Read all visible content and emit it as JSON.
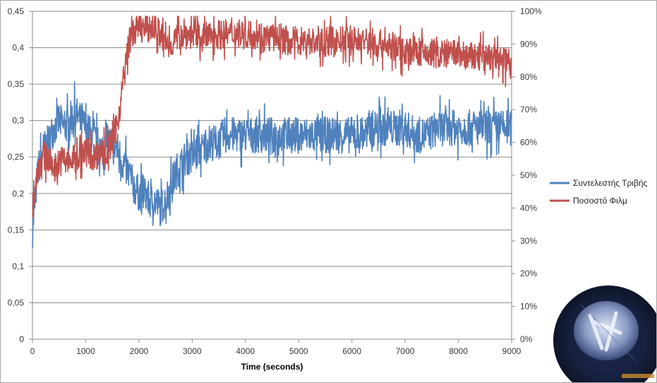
{
  "chart_data": {
    "type": "line",
    "xlabel": "Time (seconds)",
    "ylabel_left": "",
    "ylabel_right": "",
    "x_ticks": [
      0,
      1000,
      2000,
      3000,
      4000,
      5000,
      6000,
      7000,
      8000,
      9000
    ],
    "x_tick_labels": [
      "0",
      "1000",
      "2000",
      "3000",
      "4000",
      "5000",
      "6000",
      "7000",
      "8000",
      "9000"
    ],
    "xlim": [
      0,
      9000
    ],
    "ylim_left": [
      0,
      0.45
    ],
    "y_left_ticks": [
      0,
      0.05,
      0.1,
      0.15,
      0.2,
      0.25,
      0.3,
      0.35,
      0.4,
      0.45
    ],
    "y_left_tick_labels": [
      "0",
      "0,05",
      "0,1",
      "0,15",
      "0,2",
      "0,25",
      "0,3",
      "0,35",
      "0,4",
      "0,45"
    ],
    "ylim_right": [
      0,
      1
    ],
    "y_right_ticks": [
      0,
      0.1,
      0.2,
      0.3,
      0.4,
      0.5,
      0.6,
      0.7,
      0.8,
      0.9,
      1.0
    ],
    "y_right_tick_labels": [
      "0%",
      "10%",
      "20%",
      "30%",
      "40%",
      "50%",
      "60%",
      "70%",
      "80%",
      "90%",
      "100%"
    ],
    "grid": "horizontal",
    "legend_position": "right",
    "series": [
      {
        "name": "Συντελεστής Τριβής",
        "axis": "left",
        "color": "#4f81bd",
        "x": [
          0,
          100,
          200,
          300,
          400,
          500,
          600,
          700,
          800,
          900,
          1000,
          1100,
          1200,
          1300,
          1400,
          1500,
          1600,
          1700,
          1800,
          1900,
          2000,
          2100,
          2200,
          2300,
          2400,
          2500,
          2600,
          2700,
          2800,
          2900,
          3000,
          3100,
          3200,
          3300,
          3400,
          3500,
          3600,
          3700,
          3800,
          3900,
          4000,
          4200,
          4400,
          4600,
          4800,
          5000,
          5200,
          5400,
          5600,
          5800,
          6000,
          6200,
          6400,
          6600,
          6800,
          7000,
          7200,
          7400,
          7600,
          7800,
          8000,
          8200,
          8400,
          8600,
          8800,
          9000
        ],
        "values": [
          0.15,
          0.23,
          0.26,
          0.27,
          0.29,
          0.3,
          0.29,
          0.3,
          0.31,
          0.3,
          0.29,
          0.28,
          0.27,
          0.26,
          0.27,
          0.27,
          0.26,
          0.24,
          0.23,
          0.21,
          0.2,
          0.2,
          0.19,
          0.19,
          0.18,
          0.19,
          0.21,
          0.23,
          0.24,
          0.25,
          0.25,
          0.26,
          0.26,
          0.27,
          0.27,
          0.27,
          0.28,
          0.28,
          0.28,
          0.28,
          0.28,
          0.28,
          0.28,
          0.28,
          0.28,
          0.28,
          0.28,
          0.28,
          0.28,
          0.28,
          0.28,
          0.28,
          0.29,
          0.29,
          0.29,
          0.29,
          0.28,
          0.28,
          0.29,
          0.29,
          0.29,
          0.29,
          0.29,
          0.29,
          0.29,
          0.29
        ],
        "noise_amplitude": 0.025
      },
      {
        "name": "Ποσοστό Φιλμ",
        "axis": "right",
        "color": "#c0504d",
        "x": [
          0,
          100,
          200,
          300,
          400,
          500,
          600,
          700,
          800,
          900,
          1000,
          1100,
          1200,
          1300,
          1400,
          1500,
          1600,
          1700,
          1800,
          1900,
          2000,
          2100,
          2200,
          2300,
          2400,
          2500,
          2600,
          2700,
          2800,
          2900,
          3000,
          3200,
          3400,
          3600,
          3800,
          4000,
          4200,
          4400,
          4600,
          4800,
          5000,
          5200,
          5400,
          5600,
          5800,
          6000,
          6200,
          6400,
          6600,
          6800,
          7000,
          7200,
          7400,
          7600,
          7800,
          8000,
          8200,
          8400,
          8600,
          8800,
          9000
        ],
        "values": [
          0.4,
          0.52,
          0.56,
          0.55,
          0.52,
          0.54,
          0.55,
          0.54,
          0.55,
          0.56,
          0.57,
          0.56,
          0.56,
          0.58,
          0.57,
          0.6,
          0.66,
          0.78,
          0.9,
          0.94,
          0.95,
          0.95,
          0.95,
          0.95,
          0.93,
          0.9,
          0.9,
          0.92,
          0.93,
          0.93,
          0.93,
          0.92,
          0.93,
          0.93,
          0.93,
          0.93,
          0.93,
          0.92,
          0.92,
          0.91,
          0.91,
          0.91,
          0.9,
          0.91,
          0.91,
          0.91,
          0.91,
          0.9,
          0.9,
          0.89,
          0.88,
          0.88,
          0.87,
          0.87,
          0.87,
          0.87,
          0.86,
          0.86,
          0.86,
          0.85,
          0.85
        ],
        "noise_amplitude": 0.045
      }
    ]
  },
  "inset": {
    "description_icon": "worn-pin-micrograph",
    "caption": ""
  }
}
